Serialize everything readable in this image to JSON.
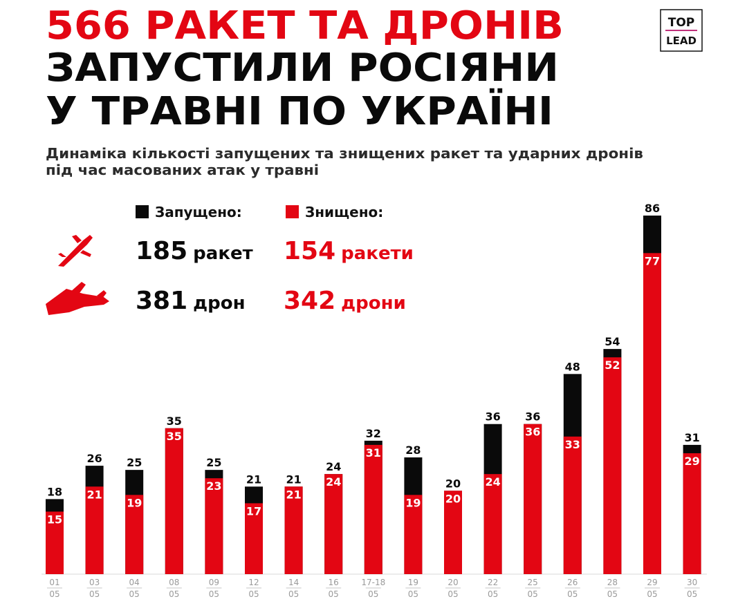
{
  "title": [
    "566 РАКЕТ ТА ДРОНІВ",
    "ЗАПУСТИЛИ РОСІЯНИ",
    "У ТРАВНІ ПО УКРАЇНІ"
  ],
  "subtitle": [
    "Динаміка кількості запущених та знищених ракет та ударних дронів",
    "під час масованих атак у травні"
  ],
  "logo": {
    "top": "TOP",
    "bottom": "LEAD"
  },
  "summary": [
    {
      "launched": 185,
      "launched_unit": "ракет",
      "destroyed": 154,
      "destroyed_unit": "ракети"
    },
    {
      "launched": 381,
      "launched_unit": "дрон",
      "destroyed": 342,
      "destroyed_unit": "дрони"
    }
  ],
  "chart_data": {
    "type": "bar",
    "categories": [
      {
        "day": "01",
        "month": "05"
      },
      {
        "day": "03",
        "month": "05"
      },
      {
        "day": "04",
        "month": "05"
      },
      {
        "day": "08",
        "month": "05"
      },
      {
        "day": "09",
        "month": "05"
      },
      {
        "day": "12",
        "month": "05"
      },
      {
        "day": "14",
        "month": "05"
      },
      {
        "day": "16",
        "month": "05"
      },
      {
        "day": "17-18",
        "month": "05"
      },
      {
        "day": "19",
        "month": "05"
      },
      {
        "day": "20",
        "month": "05"
      },
      {
        "day": "22",
        "month": "05"
      },
      {
        "day": "25",
        "month": "05"
      },
      {
        "day": "26",
        "month": "05"
      },
      {
        "day": "28",
        "month": "05"
      },
      {
        "day": "29",
        "month": "05"
      },
      {
        "day": "30",
        "month": "05"
      }
    ],
    "series": [
      {
        "name": "Запущено:",
        "color": "#0a0a0a",
        "values": [
          18,
          26,
          25,
          35,
          25,
          21,
          21,
          24,
          32,
          28,
          20,
          36,
          36,
          48,
          54,
          86,
          31
        ]
      },
      {
        "name": "Знищено:",
        "color": "#e30613",
        "values": [
          15,
          21,
          19,
          35,
          23,
          17,
          21,
          24,
          31,
          19,
          20,
          24,
          36,
          33,
          52,
          77,
          29
        ]
      }
    ]
  }
}
